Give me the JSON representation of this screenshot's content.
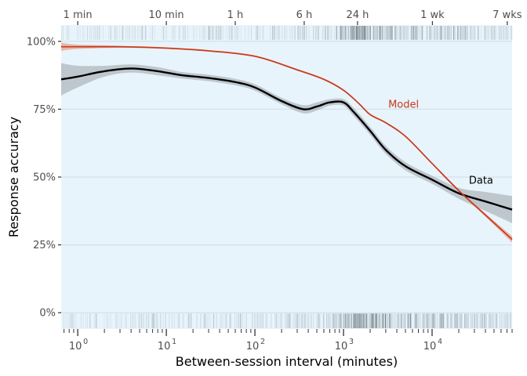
{
  "chart_data": {
    "type": "line",
    "title": "",
    "xlabel": "Between-session interval (minutes)",
    "ylabel": "Response accuracy",
    "x_scale": "log10",
    "xlim": [
      0.65,
      80000
    ],
    "ylim": [
      -0.06,
      1.06
    ],
    "x_ticks": [
      {
        "value": 1,
        "base": "10",
        "exp": "0"
      },
      {
        "value": 10,
        "base": "10",
        "exp": "1"
      },
      {
        "value": 100,
        "base": "10",
        "exp": "2"
      },
      {
        "value": 1000,
        "base": "10",
        "exp": "3"
      },
      {
        "value": 10000,
        "base": "10",
        "exp": "4"
      }
    ],
    "y_ticks": [
      {
        "value": 0,
        "label": "0%"
      },
      {
        "value": 0.25,
        "label": "25%"
      },
      {
        "value": 0.5,
        "label": "50%"
      },
      {
        "value": 0.75,
        "label": "75%"
      },
      {
        "value": 1.0,
        "label": "100%"
      }
    ],
    "top_axis_ticks": [
      {
        "value": 1,
        "label": "1 min"
      },
      {
        "value": 10,
        "label": "10 min"
      },
      {
        "value": 60,
        "label": "1 h"
      },
      {
        "value": 360,
        "label": "6 h"
      },
      {
        "value": 1440,
        "label": "24 h"
      },
      {
        "value": 10080,
        "label": "1 wk"
      },
      {
        "value": 70560,
        "label": "7 wks"
      }
    ],
    "grid": true,
    "colors": {
      "panel": "#e8f4fb",
      "grid": "#d2e2ec",
      "data_line": "#000000",
      "model_line": "#c8391b",
      "data_band": "#9aa3a8",
      "model_band": "#e8917a",
      "rug": "#2b3a3f"
    },
    "series": [
      {
        "name": "Data",
        "color": "#000000",
        "x": [
          0.65,
          1,
          2,
          4,
          8,
          15,
          30,
          60,
          100,
          200,
          350,
          500,
          700,
          1000,
          1300,
          2000,
          3000,
          5000,
          10000,
          20000,
          40000,
          80000
        ],
        "y": [
          0.86,
          0.87,
          0.89,
          0.9,
          0.89,
          0.875,
          0.865,
          0.85,
          0.83,
          0.78,
          0.75,
          0.76,
          0.775,
          0.775,
          0.74,
          0.67,
          0.6,
          0.54,
          0.49,
          0.44,
          0.41,
          0.38
        ],
        "band_halfwidth": [
          0.06,
          0.04,
          0.02,
          0.015,
          0.015,
          0.012,
          0.012,
          0.012,
          0.012,
          0.012,
          0.015,
          0.015,
          0.012,
          0.012,
          0.015,
          0.015,
          0.015,
          0.015,
          0.015,
          0.02,
          0.035,
          0.05
        ]
      },
      {
        "name": "Model",
        "color": "#c8391b",
        "x": [
          0.65,
          1,
          3,
          10,
          30,
          100,
          300,
          600,
          1000,
          1500,
          2000,
          3000,
          5000,
          10000,
          20000,
          40000,
          80000
        ],
        "y": [
          0.98,
          0.98,
          0.98,
          0.975,
          0.965,
          0.945,
          0.895,
          0.86,
          0.82,
          0.77,
          0.73,
          0.7,
          0.65,
          0.55,
          0.45,
          0.36,
          0.27
        ],
        "band_halfwidth": [
          0.015,
          0.008,
          0.004,
          0.003,
          0.003,
          0.003,
          0.003,
          0.003,
          0.003,
          0.003,
          0.003,
          0.003,
          0.003,
          0.003,
          0.004,
          0.006,
          0.012
        ]
      }
    ],
    "annotations": [
      {
        "text": "Model",
        "x": 3200,
        "y": 0.77,
        "color": "#c8391b"
      },
      {
        "text": "Data",
        "x": 26000,
        "y": 0.49,
        "color": "#000000"
      }
    ]
  }
}
